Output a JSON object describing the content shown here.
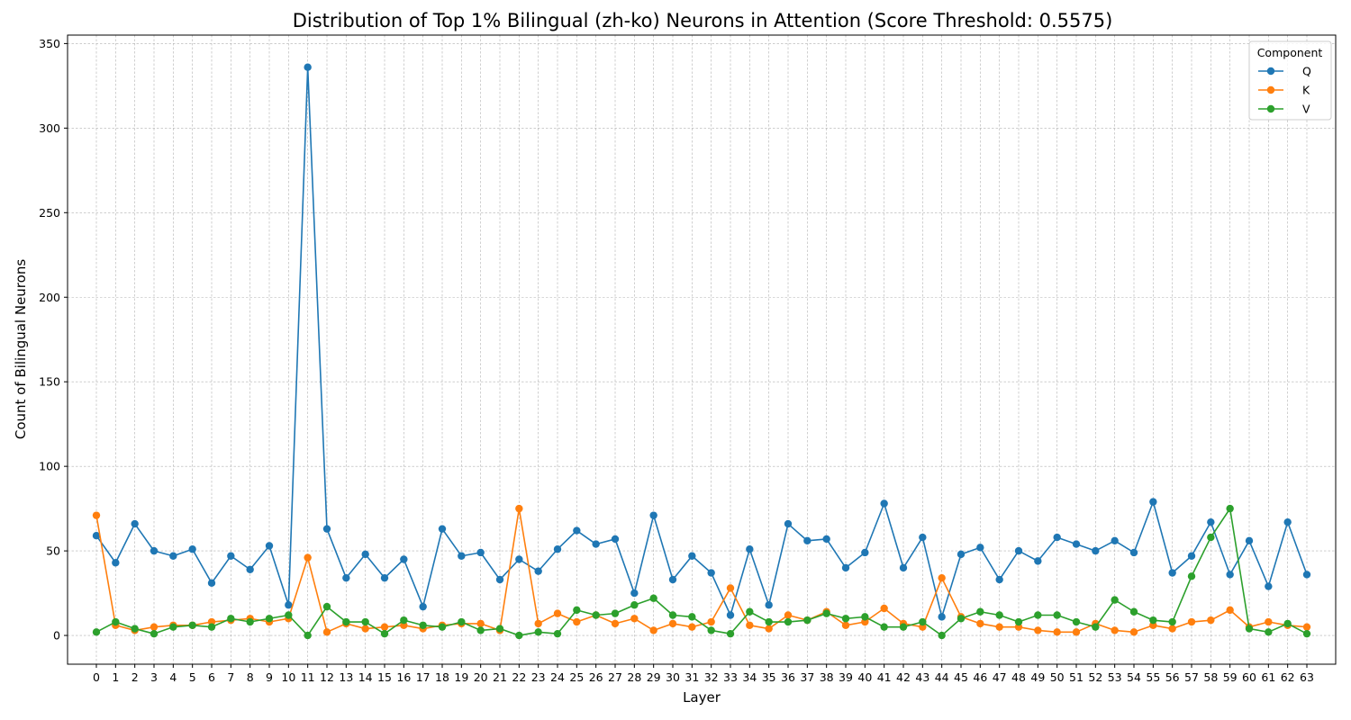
{
  "chart_data": {
    "type": "line",
    "title": "Distribution of Top 1% Bilingual (zh-ko) Neurons in Attention (Score Threshold: 0.5575)",
    "xlabel": "Layer",
    "ylabel": "Count of Bilingual Neurons",
    "ylim": [
      -17,
      355
    ],
    "yticks": [
      0,
      50,
      100,
      150,
      200,
      250,
      300,
      350
    ],
    "grid": true,
    "legend": {
      "title": "Component",
      "placement": "top-right"
    },
    "x": [
      0,
      1,
      2,
      3,
      4,
      5,
      6,
      7,
      8,
      9,
      10,
      11,
      12,
      13,
      14,
      15,
      16,
      17,
      18,
      19,
      20,
      21,
      22,
      23,
      24,
      25,
      26,
      27,
      28,
      29,
      30,
      31,
      32,
      33,
      34,
      35,
      36,
      37,
      38,
      39,
      40,
      41,
      42,
      43,
      44,
      45,
      46,
      47,
      48,
      49,
      50,
      51,
      52,
      53,
      54,
      55,
      56,
      57,
      58,
      59,
      60,
      61,
      62,
      63
    ],
    "series": [
      {
        "name": "Q",
        "color": "#1f77b4",
        "values": [
          59,
          43,
          66,
          50,
          47,
          51,
          31,
          47,
          39,
          53,
          18,
          336,
          63,
          34,
          48,
          34,
          45,
          17,
          63,
          47,
          49,
          33,
          45,
          38,
          51,
          62,
          54,
          57,
          25,
          71,
          33,
          47,
          37,
          12,
          51,
          18,
          66,
          56,
          57,
          40,
          49,
          78,
          40,
          58,
          11,
          48,
          52,
          33,
          50,
          44,
          58,
          54,
          50,
          56,
          49,
          79,
          37,
          47,
          67,
          36,
          56,
          29,
          67,
          36
        ]
      },
      {
        "name": "K",
        "color": "#ff7f0e",
        "values": [
          71,
          6,
          3,
          5,
          6,
          6,
          8,
          9,
          10,
          8,
          10,
          46,
          2,
          7,
          4,
          5,
          6,
          4,
          6,
          7,
          7,
          3,
          75,
          7,
          13,
          8,
          12,
          7,
          10,
          3,
          7,
          5,
          8,
          28,
          6,
          4,
          12,
          9,
          14,
          6,
          8,
          16,
          7,
          5,
          34,
          11,
          7,
          5,
          5,
          3,
          2,
          2,
          7,
          3,
          2,
          6,
          4,
          8,
          9,
          15,
          5,
          8,
          6,
          5
        ]
      },
      {
        "name": "V",
        "color": "#2ca02c",
        "values": [
          2,
          8,
          4,
          1,
          5,
          6,
          5,
          10,
          8,
          10,
          12,
          0,
          17,
          8,
          8,
          1,
          9,
          6,
          5,
          8,
          3,
          4,
          0,
          2,
          1,
          15,
          12,
          13,
          18,
          22,
          12,
          11,
          3,
          1,
          14,
          8,
          8,
          9,
          13,
          10,
          11,
          5,
          5,
          8,
          0,
          10,
          14,
          12,
          8,
          12,
          12,
          8,
          5,
          21,
          14,
          9,
          8,
          35,
          58,
          75,
          4,
          2,
          7,
          1
        ]
      }
    ]
  }
}
